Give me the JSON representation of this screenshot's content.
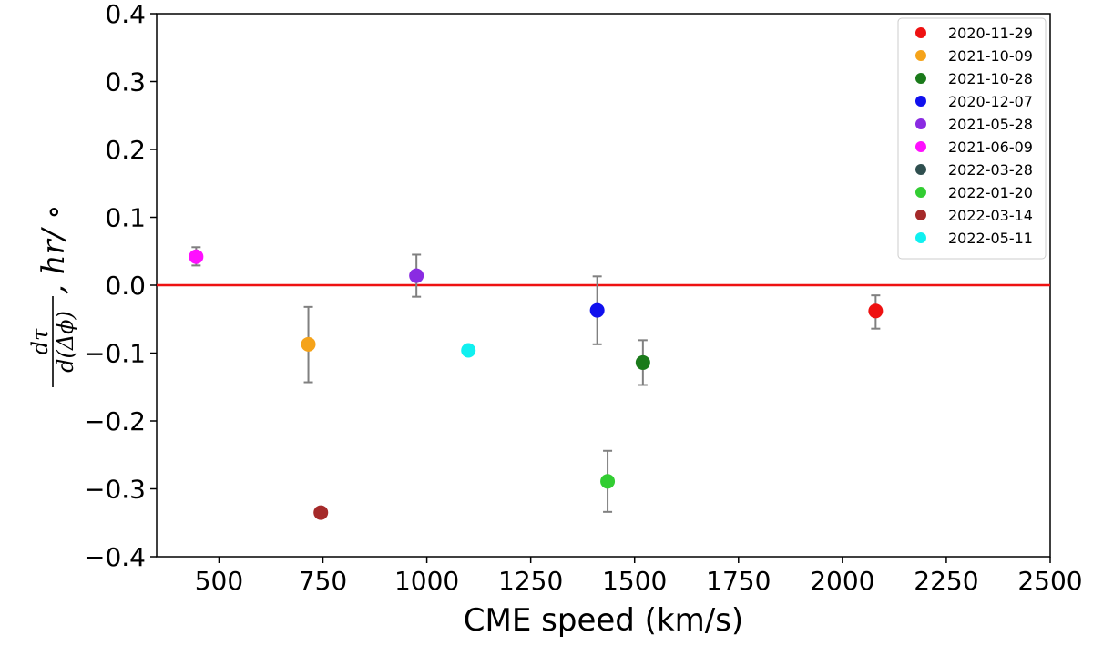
{
  "chart_data": {
    "type": "scatter",
    "xlabel": "CME speed (km/s)",
    "ylabel": {
      "frac_num": "dτ",
      "frac_den": "d(Δϕ)",
      "suffix": ", hr/ ∘"
    },
    "xlim": [
      350,
      2500
    ],
    "ylim": [
      -0.4,
      0.4
    ],
    "xticks": [
      500,
      750,
      1000,
      1250,
      1500,
      1750,
      2000,
      2250,
      2500
    ],
    "yticks": [
      0.4,
      0.3,
      0.2,
      0.1,
      0.0,
      -0.1,
      -0.2,
      -0.3,
      -0.4
    ],
    "ytick_labels": [
      "0.4",
      "0.3",
      "0.2",
      "0.1",
      "0.0",
      "−0.1",
      "−0.2",
      "−0.3",
      "−0.4"
    ],
    "reference_line": {
      "y": 0.0,
      "color": "#ee1111"
    },
    "error_bar_color": "#808080",
    "legend_placement": "top-right",
    "series": [
      {
        "name": "2020-11-29",
        "color": "#ee1111",
        "x": 2080,
        "y": -0.038,
        "yerr_low": -0.064,
        "yerr_high": -0.015
      },
      {
        "name": "2021-10-09",
        "color": "#f5a31a",
        "x": 715,
        "y": -0.087,
        "yerr_low": -0.143,
        "yerr_high": -0.032
      },
      {
        "name": "2021-10-28",
        "color": "#1a7a1a",
        "x": 1520,
        "y": -0.114,
        "yerr_low": -0.147,
        "yerr_high": -0.081
      },
      {
        "name": "2020-12-07",
        "color": "#1010ee",
        "x": 1410,
        "y": -0.037,
        "yerr_low": -0.087,
        "yerr_high": 0.013
      },
      {
        "name": "2021-05-28",
        "color": "#8a2be2",
        "x": 975,
        "y": 0.014,
        "yerr_low": -0.017,
        "yerr_high": 0.045
      },
      {
        "name": "2021-06-09",
        "color": "#ff10ff",
        "x": 445,
        "y": 0.042,
        "yerr_low": 0.029,
        "yerr_high": 0.056
      },
      {
        "name": "2022-03-28",
        "color": "#2f4f4f",
        "x": null,
        "y": null
      },
      {
        "name": "2022-01-20",
        "color": "#32cd32",
        "x": 1435,
        "y": -0.289,
        "yerr_low": -0.334,
        "yerr_high": -0.244
      },
      {
        "name": "2022-03-14",
        "color": "#a52a2a",
        "x": 745,
        "y": -0.335
      },
      {
        "name": "2022-05-11",
        "color": "#10f0f0",
        "x": 1100,
        "y": -0.096
      }
    ]
  }
}
